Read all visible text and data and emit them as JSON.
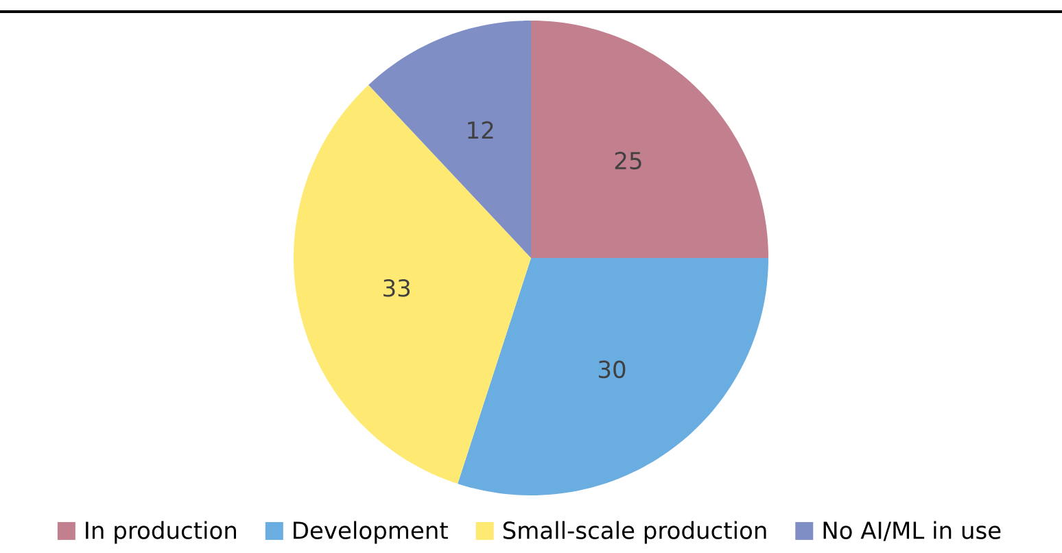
{
  "chart_data": {
    "type": "pie",
    "categories": [
      "In production",
      "Development",
      "Small-scale production",
      "No AI/ML in use"
    ],
    "values": [
      25,
      30,
      33,
      12
    ],
    "colors": [
      "#c27f8e",
      "#6aade0",
      "#fee973",
      "#7f8ec5"
    ],
    "data_labels": true,
    "legend": "bottom"
  }
}
